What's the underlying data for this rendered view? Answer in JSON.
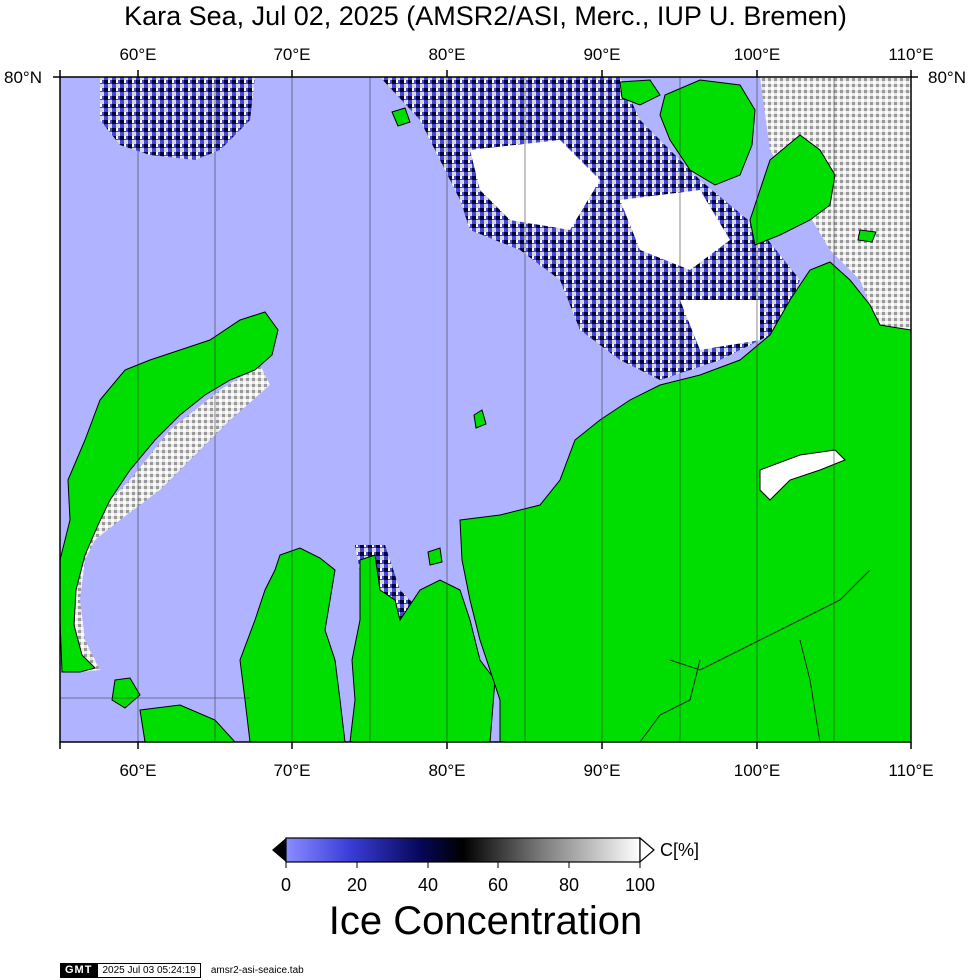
{
  "title": "Kara Sea, Jul 02, 2025 (AMSR2/ASI, Merc., IUP U. Bremen)",
  "map": {
    "lon_ticks": [
      "60°E",
      "70°E",
      "80°E",
      "90°E",
      "100°E",
      "110°E"
    ],
    "lat_tick": "80°N",
    "lon_range": [
      55,
      110
    ],
    "colors": {
      "open_water": "#b0b3ff",
      "land": "#00dd00",
      "ice_low": "#5558ee",
      "ice_mid": "#000000",
      "ice_high": "#ffffff"
    }
  },
  "colorbar": {
    "title": "Ice Concentration",
    "unit": "C[%]",
    "tick_labels": [
      "0",
      "20",
      "40",
      "60",
      "80",
      "100"
    ],
    "range": [
      0,
      100
    ]
  },
  "footer": {
    "logo": "GMT",
    "timestamp": "2025 Jul 03 05:24:19",
    "script": "amsr2-asi-seaice.tab"
  }
}
